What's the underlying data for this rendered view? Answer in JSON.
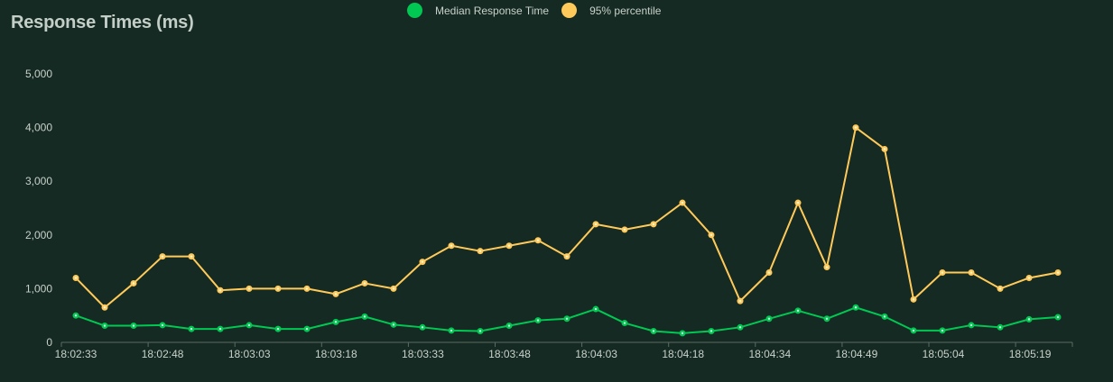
{
  "title": "Response Times (ms)",
  "legend": [
    {
      "label": "Median Response Time",
      "color": "#00c853"
    },
    {
      "label": "95% percentile",
      "color": "#ffca5a"
    }
  ],
  "chart_data": {
    "type": "line",
    "title": "Response Times (ms)",
    "xlabel": "",
    "ylabel": "",
    "ylim": [
      0,
      5000
    ],
    "yticks": [
      0,
      1000,
      2000,
      3000,
      4000,
      5000
    ],
    "ytick_labels": [
      "0",
      "1,000",
      "2,000",
      "3,000",
      "4,000",
      "5,000"
    ],
    "xtick_labels": [
      "18:02:33",
      "18:02:48",
      "18:03:03",
      "18:03:18",
      "18:03:33",
      "18:03:48",
      "18:04:03",
      "18:04:18",
      "18:04:34",
      "18:04:49",
      "18:05:04",
      "18:05:19"
    ],
    "grid": false,
    "legend_position": "top",
    "point_count": 35,
    "series": [
      {
        "name": "Median Response Time",
        "color": "#00c853",
        "values": [
          500,
          310,
          310,
          320,
          250,
          250,
          320,
          250,
          250,
          380,
          480,
          330,
          280,
          220,
          210,
          310,
          410,
          440,
          620,
          360,
          210,
          170,
          210,
          280,
          440,
          590,
          440,
          650,
          480,
          220,
          220,
          320,
          280,
          430,
          470
        ]
      },
      {
        "name": "95% percentile",
        "color": "#ffca5a",
        "values": [
          1200,
          650,
          1100,
          1600,
          1600,
          970,
          1000,
          1000,
          1000,
          900,
          1100,
          1000,
          1500,
          1800,
          1700,
          1800,
          1900,
          1600,
          2200,
          2100,
          2200,
          2600,
          2000,
          770,
          1300,
          2600,
          1400,
          4000,
          3600,
          800,
          1300,
          1300,
          1000,
          1200,
          1300
        ]
      }
    ]
  }
}
